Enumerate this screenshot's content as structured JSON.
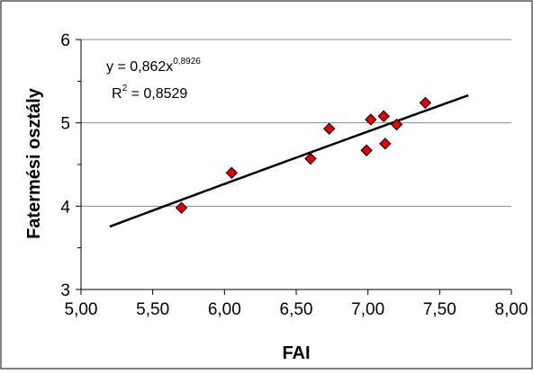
{
  "chart_data": {
    "type": "scatter",
    "xlabel": "FAI",
    "ylabel": "Fatermési osztály",
    "xlim": [
      5.0,
      8.0
    ],
    "ylim": [
      3,
      6
    ],
    "x_ticks": [
      "5,00",
      "5,50",
      "6,00",
      "6,50",
      "7,00",
      "7,50",
      "8,00"
    ],
    "y_ticks": [
      "3",
      "4",
      "5",
      "6"
    ],
    "grid": "horizontal",
    "marker_color": "#dd0000",
    "line_color": "#000000",
    "series": [
      {
        "points": [
          {
            "x": 5.7,
            "y": 3.98
          },
          {
            "x": 6.05,
            "y": 4.4
          },
          {
            "x": 6.6,
            "y": 4.57
          },
          {
            "x": 6.73,
            "y": 4.93
          },
          {
            "x": 6.99,
            "y": 4.67
          },
          {
            "x": 7.02,
            "y": 5.04
          },
          {
            "x": 7.11,
            "y": 5.08
          },
          {
            "x": 7.12,
            "y": 4.75
          },
          {
            "x": 7.2,
            "y": 4.98
          },
          {
            "x": 7.4,
            "y": 5.24
          }
        ]
      }
    ],
    "trendline": {
      "type": "power",
      "a": 0.862,
      "b": 0.8926,
      "x_range": [
        5.2,
        7.7
      ],
      "equation_base": "y = 0,862x",
      "equation_exponent": "0,8926",
      "r2_prefix": "R",
      "r2_exponent": "2",
      "r2_value": " = 0,8529"
    }
  }
}
